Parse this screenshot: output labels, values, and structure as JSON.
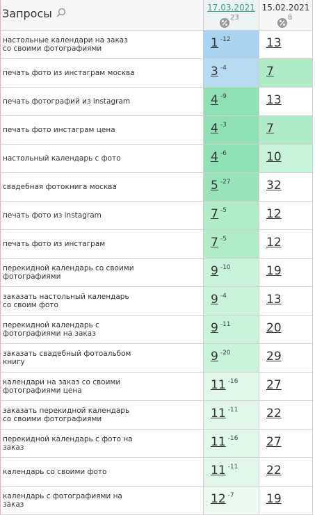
{
  "header": {
    "title": "Запросы",
    "columns": [
      {
        "date": "17.03.2021",
        "percent": 23
      },
      {
        "date": "15.02.2021",
        "percent": 8
      }
    ]
  },
  "table": {
    "rows": [
      {
        "query": [
          "настольные календари на заказ",
          "со своими фотографиями"
        ],
        "position": 1,
        "change": -12,
        "previous": 13,
        "position_color": "#a9d3f0",
        "previous_color": "#ffffff"
      },
      {
        "query": [
          "печать фото из инстаграм москва"
        ],
        "position": 3,
        "change": -4,
        "previous": 7,
        "position_color": "#b7dcf2",
        "previous_color": "#aeebc6"
      },
      {
        "query": [
          "печать фотографий из instagram"
        ],
        "position": 4,
        "change": -9,
        "previous": 13,
        "position_color": "#8fe0b5",
        "previous_color": "#ffffff"
      },
      {
        "query": [
          "печать фото инстаграм цена"
        ],
        "position": 4,
        "change": -3,
        "previous": 7,
        "position_color": "#8fe0b5",
        "previous_color": "#aeebc6"
      },
      {
        "query": [
          "настольный календарь с фото"
        ],
        "position": 4,
        "change": -6,
        "previous": 10,
        "position_color": "#8fe0b5",
        "previous_color": "#c8f2da"
      },
      {
        "query": [
          "свадебная фотокнига москва"
        ],
        "position": 5,
        "change": -27,
        "previous": 32,
        "position_color": "#98e3ba",
        "previous_color": "#ffffff"
      },
      {
        "query": [
          "печать фото из instagram"
        ],
        "position": 7,
        "change": -5,
        "previous": 12,
        "position_color": "#b0ecc8",
        "previous_color": "#ffffff"
      },
      {
        "query": [
          "печать фото из инстаграм"
        ],
        "position": 7,
        "change": -5,
        "previous": 12,
        "position_color": "#b0ecc8",
        "previous_color": "#ffffff"
      },
      {
        "query": [
          "перекидной календарь со своими",
          "фотографиями"
        ],
        "position": 9,
        "change": -10,
        "previous": 19,
        "position_color": "#c8f2d9",
        "previous_color": "#ffffff"
      },
      {
        "query": [
          "заказать настольный календарь",
          "со своим фото"
        ],
        "position": 9,
        "change": -4,
        "previous": 13,
        "position_color": "#c8f2d9",
        "previous_color": "#ffffff"
      },
      {
        "query": [
          "перекидной календарь с",
          "фотографиями на заказ"
        ],
        "position": 9,
        "change": -11,
        "previous": 20,
        "position_color": "#c8f2d9",
        "previous_color": "#ffffff"
      },
      {
        "query": [
          "заказать свадебный фотоальбом",
          "книгу"
        ],
        "position": 9,
        "change": -20,
        "previous": 29,
        "position_color": "#c8f2d9",
        "previous_color": "#ffffff"
      },
      {
        "query": [
          "календари на заказ со своими",
          "фотографиями цена"
        ],
        "position": 11,
        "change": -16,
        "previous": 27,
        "position_color": "#e0f7ea",
        "previous_color": "#ffffff"
      },
      {
        "query": [
          "заказать перекидной календарь",
          "со своими фотографиями"
        ],
        "position": 11,
        "change": -11,
        "previous": 22,
        "position_color": "#e0f7ea",
        "previous_color": "#ffffff"
      },
      {
        "query": [
          "перекидной календарь с фото на",
          "заказ"
        ],
        "position": 11,
        "change": -16,
        "previous": 27,
        "position_color": "#e0f7ea",
        "previous_color": "#ffffff"
      },
      {
        "query": [
          "календарь со своими фото"
        ],
        "position": 11,
        "change": -11,
        "previous": 22,
        "position_color": "#e0f7ea",
        "previous_color": "#ffffff"
      },
      {
        "query": [
          "календарь с фотографиями на",
          "заказ"
        ],
        "position": 12,
        "change": -7,
        "previous": 19,
        "position_color": "#edfaf2",
        "previous_color": "#ffffff"
      }
    ]
  }
}
